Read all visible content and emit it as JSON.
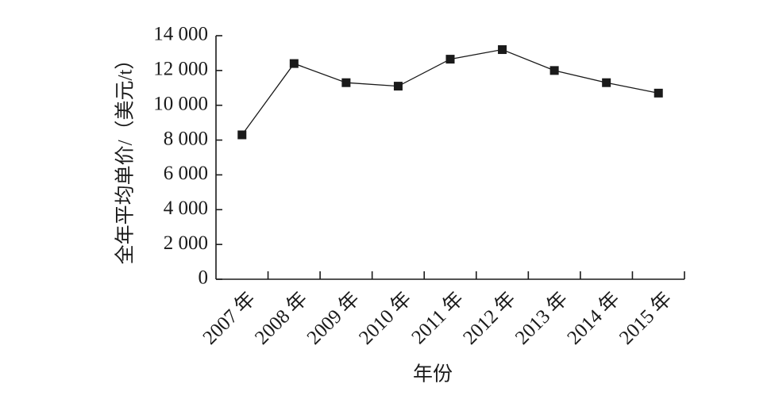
{
  "chart_data": {
    "type": "line",
    "x_label": "年份",
    "y_label": "全年平均单价/（美元/t）",
    "categories": [
      "2007 年",
      "2008 年",
      "2009 年",
      "2010 年",
      "2011 年",
      "2012 年",
      "2013 年",
      "2014 年",
      "2015 年"
    ],
    "series": [
      {
        "color": "#1a1a1a",
        "values": [
          8300,
          12400,
          11300,
          11100,
          12650,
          13200,
          12000,
          11300,
          10700
        ]
      }
    ],
    "ylim": [
      0,
      14000
    ],
    "yticks": [
      0,
      {
        "value": 2000,
        "label": "2 000"
      },
      {
        "value": 4000,
        "label": "4 000"
      },
      {
        "value": 6000,
        "label": "6 000"
      },
      {
        "value": 8000,
        "label": "8 000"
      },
      {
        "value": 10000,
        "label": "10 000"
      },
      {
        "value": 12000,
        "label": "12 000"
      },
      {
        "value": 14000,
        "label": "14 000"
      }
    ],
    "grid": false
  }
}
